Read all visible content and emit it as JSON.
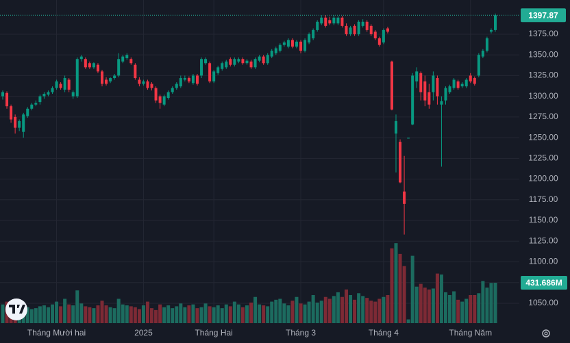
{
  "chart_data": {
    "type": "candlestick",
    "categories": [
      null,
      null,
      null,
      null,
      null,
      null,
      null,
      null,
      null,
      null,
      null,
      null,
      null,
      "Tháng Mười hai",
      null,
      null,
      null,
      null,
      null,
      null,
      null,
      null,
      null,
      null,
      null,
      null,
      null,
      null,
      null,
      null,
      null,
      null,
      null,
      null,
      "2025",
      null,
      null,
      null,
      null,
      null,
      null,
      null,
      null,
      null,
      null,
      null,
      null,
      null,
      null,
      null,
      null,
      "Tháng Hai",
      null,
      null,
      null,
      null,
      null,
      null,
      null,
      null,
      null,
      null,
      null,
      null,
      null,
      null,
      null,
      null,
      null,
      null,
      null,
      null,
      "Tháng 3",
      null,
      null,
      null,
      null,
      null,
      null,
      null,
      null,
      null,
      null,
      null,
      null,
      null,
      null,
      null,
      null,
      null,
      null,
      null,
      "Tháng 4",
      null,
      null,
      null,
      null,
      null,
      null,
      null,
      null,
      null,
      null,
      null,
      null,
      null,
      null,
      null,
      null,
      null,
      null,
      null,
      null,
      "Tháng Năm",
      null,
      null,
      null,
      null,
      null,
      null
    ],
    "open": [
      1300,
      1304,
      1288,
      1275,
      1262,
      1257,
      1276,
      1285,
      1290,
      1293,
      1300,
      1302,
      1305,
      1310,
      1315,
      1308,
      1320,
      1300,
      1300,
      1345,
      1345,
      1340,
      1335,
      1338,
      1330,
      1320,
      1318,
      1322,
      1325,
      1342,
      1346,
      1345,
      1338,
      1320,
      1315,
      1318,
      1315,
      1310,
      1300,
      1290,
      1298,
      1305,
      1310,
      1312,
      1320,
      1322,
      1316,
      1325,
      1325,
      1340,
      1340,
      1318,
      1328,
      1333,
      1335,
      1345,
      1338,
      1342,
      1345,
      1340,
      1342,
      1335,
      1343,
      1348,
      1340,
      1348,
      1352,
      1355,
      1362,
      1360,
      1368,
      1360,
      1366,
      1355,
      1365,
      1370,
      1380,
      1388,
      1395,
      1392,
      1388,
      1388,
      1395,
      1385,
      1375,
      1385,
      1375,
      1385,
      1390,
      1385,
      1378,
      1370,
      1365,
      1382,
      1342,
      1255,
      1245,
      1185,
      1249,
      1266,
      1318,
      1328,
      1318,
      1305,
      1305,
      1322,
      1290,
      1295,
      1305,
      1310,
      1318,
      1312,
      1312,
      1325,
      1322,
      1325,
      1348,
      1355,
      1378,
      1380
    ],
    "high": [
      1307,
      1306,
      1290,
      1278,
      1272,
      1280,
      1287,
      1292,
      1295,
      1302,
      1305,
      1307,
      1312,
      1320,
      1317,
      1325,
      1322,
      1307,
      1347,
      1350,
      1347,
      1342,
      1341,
      1340,
      1332,
      1323,
      1323,
      1327,
      1352,
      1350,
      1352,
      1347,
      1340,
      1323,
      1320,
      1320,
      1317,
      1312,
      1302,
      1302,
      1307,
      1312,
      1317,
      1325,
      1325,
      1324,
      1327,
      1327,
      1347,
      1347,
      1342,
      1332,
      1337,
      1342,
      1344,
      1347,
      1347,
      1347,
      1347,
      1345,
      1344,
      1347,
      1350,
      1350,
      1352,
      1357,
      1360,
      1364,
      1367,
      1370,
      1370,
      1368,
      1368,
      1370,
      1377,
      1382,
      1392,
      1398,
      1398,
      1396,
      1398,
      1397,
      1397,
      1388,
      1385,
      1387,
      1392,
      1393,
      1392,
      1387,
      1380,
      1372,
      1382,
      1384,
      1343,
      1278,
      1248,
      1228,
      1250,
      1328,
      1335,
      1330,
      1325,
      1315,
      1330,
      1325,
      1300,
      1312,
      1314,
      1322,
      1320,
      1317,
      1322,
      1328,
      1324,
      1352,
      1357,
      1372,
      1382,
      1400
    ],
    "low": [
      1296,
      1285,
      1268,
      1255,
      1258,
      1250,
      1274,
      1283,
      1288,
      1290,
      1297,
      1300,
      1303,
      1308,
      1308,
      1305,
      1305,
      1297,
      1298,
      1342,
      1333,
      1333,
      1333,
      1328,
      1312,
      1313,
      1316,
      1320,
      1323,
      1340,
      1344,
      1338,
      1320,
      1312,
      1313,
      1308,
      1307,
      1292,
      1285,
      1288,
      1296,
      1303,
      1308,
      1310,
      1318,
      1316,
      1314,
      1313,
      1322,
      1338,
      1316,
      1316,
      1326,
      1331,
      1333,
      1336,
      1336,
      1340,
      1338,
      1338,
      1333,
      1333,
      1341,
      1338,
      1338,
      1346,
      1350,
      1353,
      1360,
      1358,
      1358,
      1358,
      1352,
      1353,
      1363,
      1368,
      1378,
      1386,
      1383,
      1386,
      1386,
      1386,
      1383,
      1373,
      1373,
      1373,
      1373,
      1383,
      1378,
      1373,
      1368,
      1360,
      1363,
      1376,
      1283,
      1208,
      1195,
      1133,
      1249,
      1265,
      1310,
      1295,
      1288,
      1285,
      1295,
      1290,
      1215,
      1290,
      1303,
      1308,
      1308,
      1310,
      1310,
      1316,
      1313,
      1323,
      1346,
      1353,
      1376,
      1378
    ],
    "close": [
      1305,
      1288,
      1272,
      1262,
      1270,
      1278,
      1285,
      1290,
      1292,
      1300,
      1303,
      1305,
      1310,
      1318,
      1310,
      1322,
      1308,
      1305,
      1345,
      1348,
      1335,
      1335,
      1340,
      1330,
      1315,
      1315,
      1322,
      1325,
      1345,
      1348,
      1350,
      1340,
      1322,
      1315,
      1318,
      1310,
      1310,
      1295,
      1292,
      1300,
      1305,
      1310,
      1315,
      1322,
      1322,
      1318,
      1325,
      1315,
      1345,
      1345,
      1318,
      1330,
      1335,
      1340,
      1342,
      1338,
      1345,
      1345,
      1340,
      1343,
      1335,
      1345,
      1348,
      1340,
      1350,
      1355,
      1358,
      1362,
      1365,
      1368,
      1360,
      1366,
      1355,
      1368,
      1375,
      1380,
      1390,
      1395,
      1385,
      1388,
      1395,
      1395,
      1385,
      1375,
      1383,
      1375,
      1390,
      1390,
      1380,
      1375,
      1370,
      1362,
      1380,
      1378,
      1284,
      1270,
      1196,
      1170,
      1250,
      1325,
      1330,
      1305,
      1295,
      1290,
      1325,
      1300,
      1294,
      1310,
      1312,
      1320,
      1310,
      1315,
      1320,
      1318,
      1315,
      1350,
      1355,
      1370,
      1380,
      1397.87
    ],
    "volume": {
      "values": [
        200,
        230,
        210,
        190,
        180,
        220,
        170,
        150,
        160,
        180,
        190,
        170,
        200,
        230,
        180,
        260,
        200,
        190,
        350,
        210,
        180,
        170,
        160,
        190,
        240,
        190,
        170,
        160,
        260,
        200,
        190,
        180,
        170,
        150,
        190,
        230,
        160,
        140,
        200,
        170,
        190,
        160,
        180,
        210,
        170,
        190,
        200,
        160,
        170,
        210,
        180,
        170,
        190,
        160,
        200,
        180,
        230,
        200,
        170,
        190,
        220,
        280,
        200,
        190,
        180,
        230,
        250,
        260,
        210,
        190,
        240,
        280,
        210,
        200,
        230,
        300,
        220,
        240,
        280,
        260,
        290,
        330,
        280,
        360,
        300,
        250,
        320,
        290,
        270,
        240,
        230,
        260,
        280,
        300,
        800,
        855,
        740,
        610,
        40,
        720,
        390,
        420,
        380,
        360,
        370,
        530,
        520,
        330,
        300,
        340,
        250,
        230,
        260,
        300,
        300,
        320,
        450,
        380,
        430,
        431.686
      ],
      "last_label": "431.686M",
      "vlim": [
        0,
        900
      ]
    },
    "ylim": [
      1026,
      1416.3
    ],
    "yticks": [
      {
        "value": 1050,
        "label": "1050.00"
      },
      {
        "value": 1075,
        "label": "1075.00"
      },
      {
        "value": 1100,
        "label": "1100.00"
      },
      {
        "value": 1125,
        "label": "1125.00"
      },
      {
        "value": 1150,
        "label": "1150.00"
      },
      {
        "value": 1175,
        "label": "1175.00"
      },
      {
        "value": 1200,
        "label": "1200.00"
      },
      {
        "value": 1225,
        "label": "1225.00"
      },
      {
        "value": 1250,
        "label": "1250.00"
      },
      {
        "value": 1275,
        "label": "1275.00"
      },
      {
        "value": 1300,
        "label": "1300.00"
      },
      {
        "value": 1325,
        "label": "1325.00"
      },
      {
        "value": 1350,
        "label": "1350.00"
      },
      {
        "value": 1375,
        "label": "1375.00"
      }
    ],
    "grid": true,
    "up_color": "#089981",
    "down_color": "#f23645",
    "volume_up_color": "#1c6b5f",
    "volume_down_color": "#7d2a35",
    "tag_color": "#22ab94"
  }
}
